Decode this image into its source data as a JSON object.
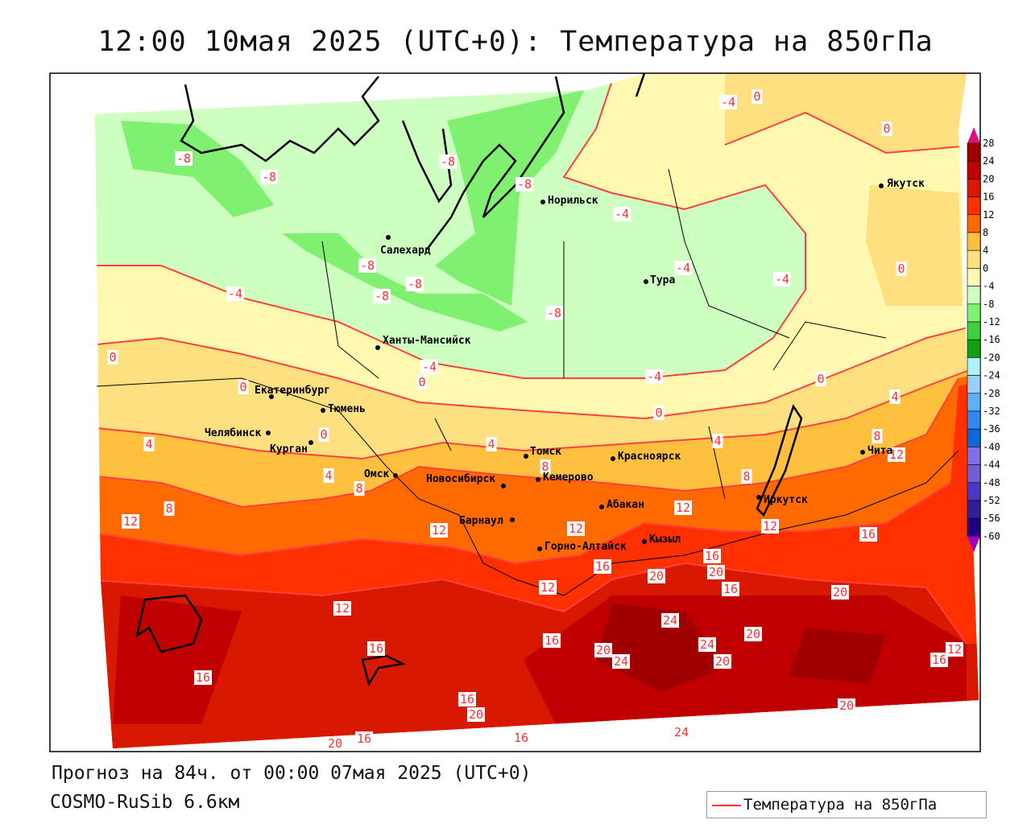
{
  "title": "12:00 10мая 2025 (UTC+0): Температура на 850гПа",
  "forecast_text": "Прогноз на 84ч. от 00:00 07мая 2025 (UTC+0)",
  "model_text": "COSMO-RuSib 6.6км",
  "legend": {
    "label": "Температура на 850гПа",
    "line_color": "#ff3030"
  },
  "colorbar": {
    "ticks": [
      "28",
      "24",
      "20",
      "16",
      "12",
      "8",
      "4",
      "0",
      "-4",
      "-8",
      "-12",
      "-16",
      "-20",
      "-24",
      "-28",
      "-32",
      "-36",
      "-40",
      "-44",
      "-48",
      "-52",
      "-56",
      "-60"
    ],
    "colors": [
      "#a00000",
      "#c00000",
      "#d81800",
      "#ff3000",
      "#ff6a00",
      "#ffc040",
      "#ffe080",
      "#fff8b0",
      "#ccffc0",
      "#80f070",
      "#40d040",
      "#10a010",
      "#b0f0f8",
      "#98d0f8",
      "#60b0f8",
      "#3088f0",
      "#1068d8",
      "#8070e8",
      "#7060d8",
      "#4838c8",
      "#302098",
      "#200080"
    ],
    "over_color": "#e0107f",
    "under_color": "#a000c0"
  },
  "cities": [
    "Салехард",
    "Норильск",
    "Якутск",
    "Тура",
    "Ханты-Мансийск",
    "Екатеринбург",
    "Тюмень",
    "Челябинск",
    "Курган",
    "Омск",
    "Новосибирск",
    "Томск",
    "Кемерово",
    "Красноярск",
    "Барнаул",
    "Абакан",
    "Горно-Алтайск",
    "Кызыл",
    "Иркутск",
    "Чита"
  ],
  "contour_labels": [
    "-8",
    "-8",
    "-8",
    "-8",
    "-4",
    "-4",
    "0",
    "0",
    "-8",
    "-8",
    "-8",
    "-8",
    "-4",
    "-4",
    "-4",
    "0",
    "0",
    "-4",
    "0",
    "-4",
    "0",
    "0",
    "0",
    "0",
    "4",
    "4",
    "4",
    "4",
    "8",
    "12",
    "4",
    "8",
    "8",
    "8",
    "8",
    "12",
    "12",
    "12",
    "12",
    "12",
    "16",
    "16",
    "20",
    "16",
    "20",
    "16",
    "12",
    "20",
    "12",
    "24",
    "16",
    "16",
    "20",
    "24",
    "24",
    "20",
    "20",
    "16",
    "12",
    "16",
    "16",
    "20",
    "20",
    "24",
    "16",
    "16",
    "20"
  ]
}
